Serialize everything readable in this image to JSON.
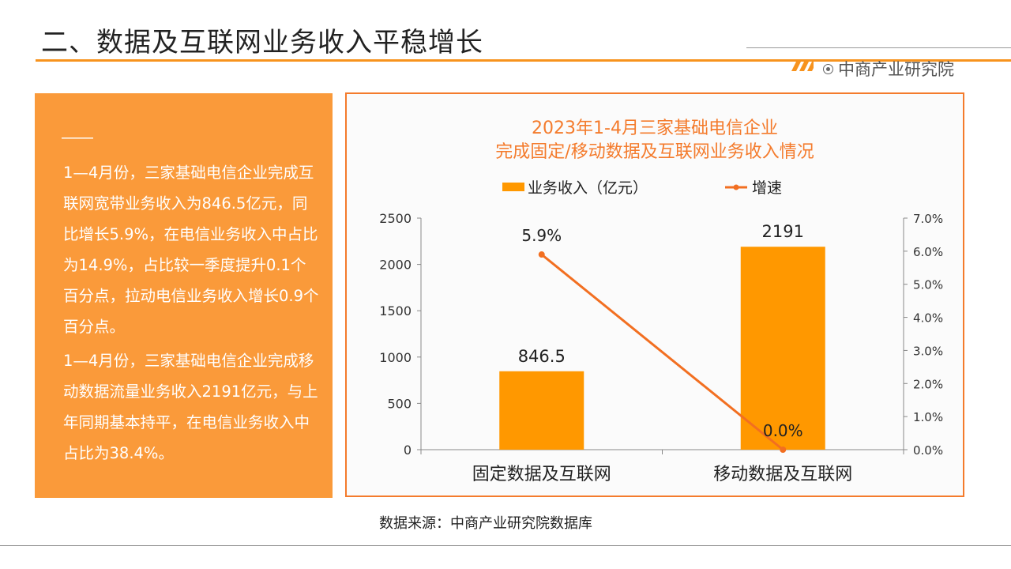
{
  "header": {
    "title": "二、数据及互联网业务收入平稳增长",
    "brand": "中商产业研究院"
  },
  "summary": {
    "paragraphs": [
      "1—4月份，三家基础电信企业完成互联网宽带业务收入为846.5亿元，同比增长5.9%，在电信业务收入中占比为14.9%，占比较一季度提升0.1个百分点，拉动电信业务收入增长0.9个百分点。",
      "1—4月份，三家基础电信企业完成移动数据流量业务收入2191亿元，与上年同期基本持平，在电信业务收入中占比为38.4%。"
    ]
  },
  "chart_data": {
    "type": "bar",
    "title": "2023年1-4月三家基础电信企业",
    "subtitle": "完成固定/移动数据及互联网业务收入情况",
    "categories": [
      "固定数据及互联网",
      "移动数据及互联网"
    ],
    "series": [
      {
        "name": "业务收入（亿元）",
        "type": "bar",
        "axis": "left",
        "values": [
          846.5,
          2191
        ],
        "labels": [
          "846.5",
          "2191"
        ],
        "color": "#ff9800"
      },
      {
        "name": "增速",
        "type": "line",
        "axis": "right",
        "values": [
          5.9,
          0.0
        ],
        "labels": [
          "5.9%",
          "0.0%"
        ],
        "color": "#f26f21"
      }
    ],
    "y_left": {
      "lim": [
        0,
        2500
      ],
      "ticks": [
        "0",
        "500",
        "1000",
        "1500",
        "2000",
        "2500"
      ],
      "tick_values": [
        0,
        500,
        1000,
        1500,
        2000,
        2500
      ]
    },
    "y_right": {
      "lim": [
        0,
        7
      ],
      "ticks": [
        "0.0%",
        "1.0%",
        "2.0%",
        "3.0%",
        "4.0%",
        "5.0%",
        "6.0%",
        "7.0%"
      ],
      "tick_values": [
        0,
        1,
        2,
        3,
        4,
        5,
        6,
        7
      ]
    },
    "legend_position": "top",
    "grid": false
  },
  "footer": {
    "source": "数据来源：中商产业研究院数据库"
  }
}
